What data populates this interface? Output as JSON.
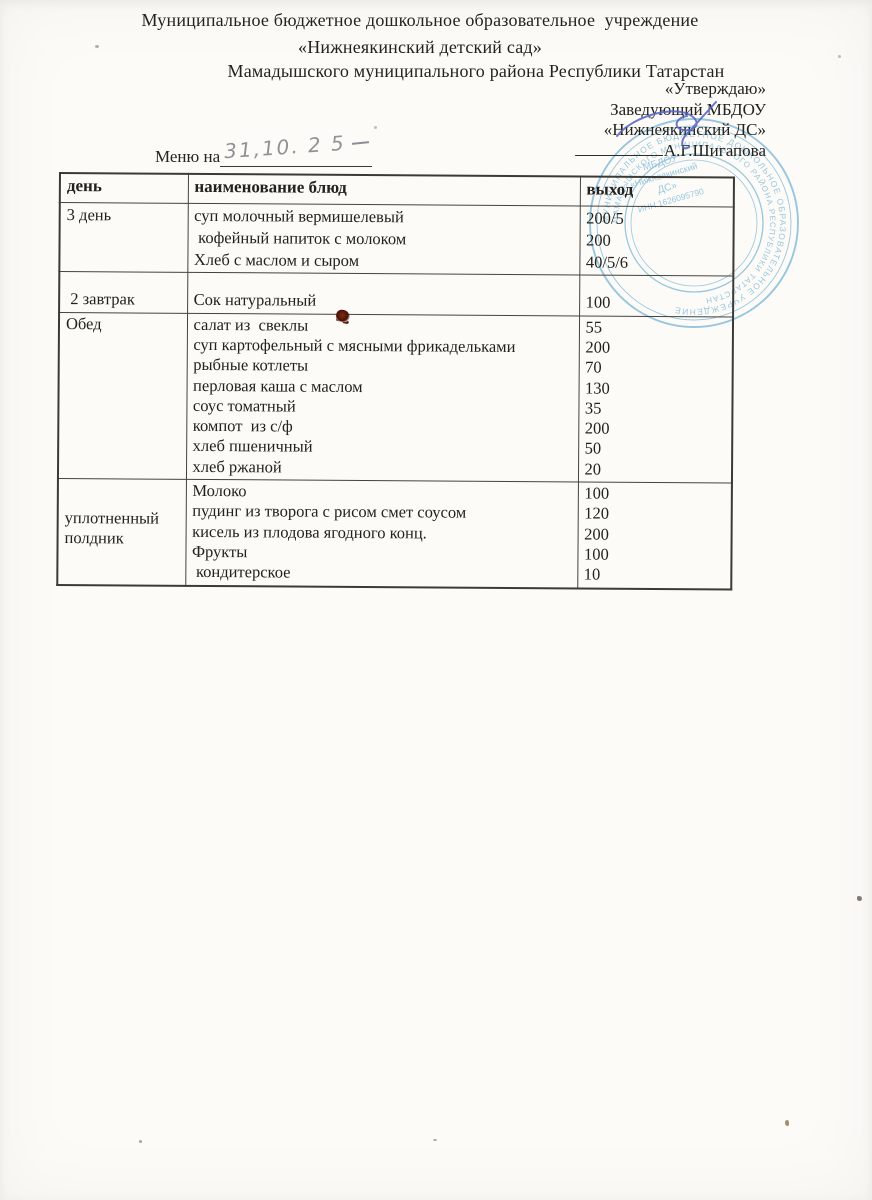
{
  "document": {
    "org_line1": "Муниципальное бюджетное дошкольное образовательное  учреждение",
    "org_line2": "«Нижнеякинский детский сад»",
    "org_line3": "Мамадышского муниципального района Республики Татарстан",
    "approve": {
      "label": "«Утверждаю»",
      "position": "Заведующий МБДОУ",
      "org_short": "«Нижнеякинский ДС»",
      "name": "А.Г.Шигапова"
    },
    "menu_label": "Меню на",
    "menu_date_handwritten": "31,10. 2 5"
  },
  "table": {
    "columns": [
      "день",
      "наименование блюд",
      "выход"
    ],
    "rows": [
      {
        "meal": "3 день",
        "dishes": [
          "суп молочный вермишелевый",
          " кофейный напиток с молоком",
          "Хлеб с маслом и сыром"
        ],
        "outputs": [
          "200/5",
          "200",
          "40/5/6"
        ]
      },
      {
        "meal": " 2 завтрак",
        "dishes": [
          "Сок натуральный"
        ],
        "outputs": [
          "100"
        ]
      },
      {
        "meal": "Обед",
        "dishes": [
          "салат из  свеклы",
          "суп картофельный с мясными фрикадельками",
          "рыбные котлеты",
          "перловая каша с маслом",
          "соус томатный",
          "компот  из с/ф",
          "хлеб пшеничный",
          "хлеб ржаной"
        ],
        "outputs": [
          "55",
          "200",
          "70",
          "130",
          "35",
          "200",
          "50",
          "20"
        ]
      },
      {
        "meal": "уплотненный полдник",
        "dishes": [
          "Молоко",
          "пудинг из творога с рисом смет соусом",
          "кисель из плодова ягодного конц.",
          "Фрукты",
          " кондитерское"
        ],
        "outputs": [
          "100",
          "120",
          "200",
          "100",
          "10"
        ]
      }
    ]
  },
  "stamp": {
    "ring_text_outer": "МУНИЦИПАЛЬНОЕ БЮДЖЕТНОЕ ДОШКОЛЬНОЕ ОБРАЗОВАТЕЛЬНОЕ УЧРЕЖДЕНИЕ ",
    "ring_text_inner": "МАМАДЫШСКОГО МУНИЦИПАЛЬНОГО РАЙОНА РЕСПУБЛИКИ ТАТАРСТАН ",
    "center_lines": [
      "МБДОУ",
      "«Нижнеякинский",
      "ДС»",
      "ИНН 1626095790"
    ]
  },
  "colors": {
    "stamp_blue": "#3f97c8",
    "signature_blue": "#5766c5",
    "pencil_gray": "#86878c",
    "stain_maroon": "#4a1005",
    "paper": "#fcfbf8",
    "ink": "#23221e"
  }
}
